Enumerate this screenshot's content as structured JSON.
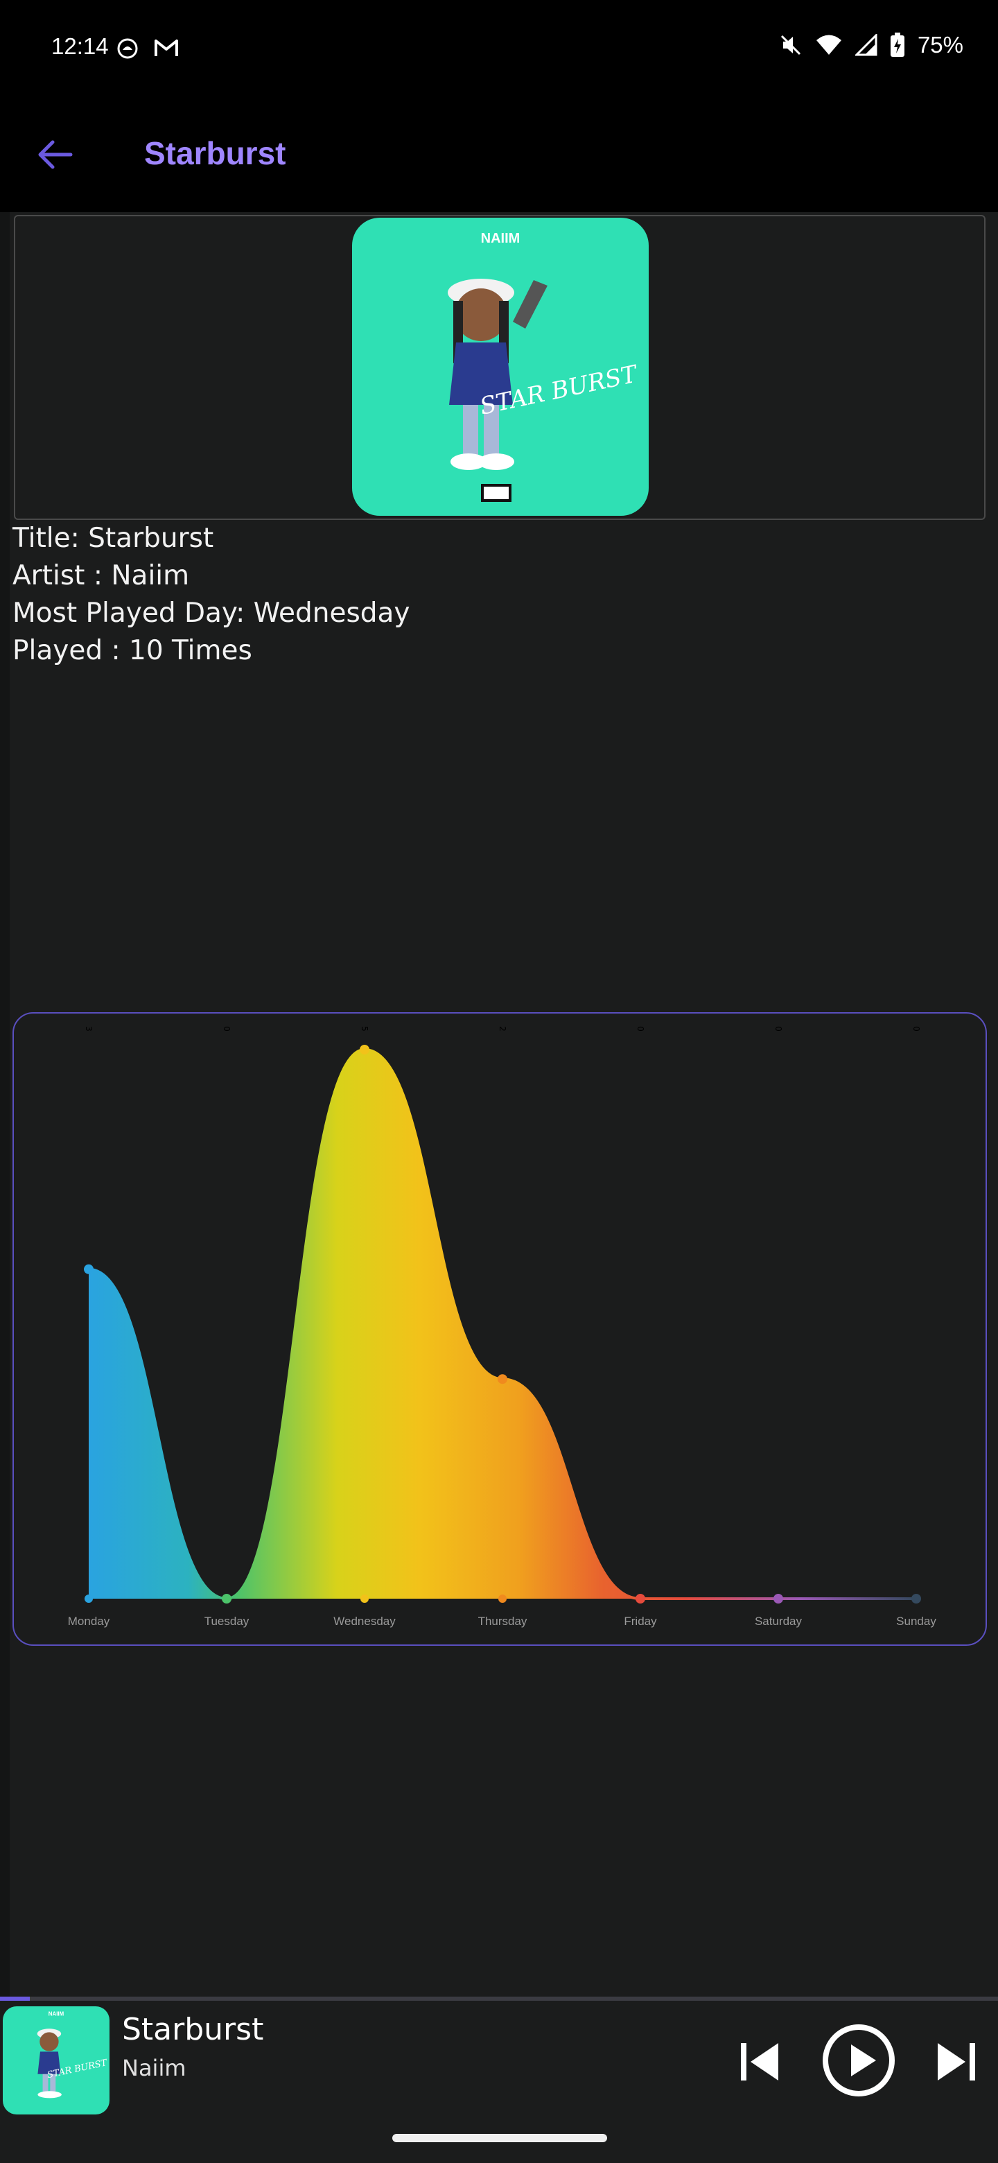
{
  "status_bar": {
    "time": "12:14",
    "battery": "75%",
    "icons": [
      "recorder-icon",
      "gmail-icon",
      "mute-icon",
      "wifi-icon",
      "signal-icon",
      "battery-icon"
    ]
  },
  "app_bar": {
    "title": "Starburst",
    "back_icon": "arrow-left-icon",
    "accent": "#9f86ff"
  },
  "song_info": {
    "title_line": "Title: Starburst",
    "artist_line": "Artist : Naiim",
    "most_played_line": "Most Played Day: Wednesday",
    "played_line": "Played : 10 Times"
  },
  "album_art": {
    "artist_text": "NAIIM",
    "cover_text": "STAR BURST",
    "color": "#2fe0b4"
  },
  "chart_data": {
    "type": "area",
    "categories": [
      "Monday",
      "Tuesday",
      "Wednesday",
      "Thursday",
      "Friday",
      "Saturday",
      "Sunday"
    ],
    "values": [
      3,
      0,
      5,
      2,
      0,
      0,
      0
    ],
    "top_labels": [
      "3",
      "0",
      "5",
      "2",
      "0",
      "0",
      "0"
    ],
    "ylim": [
      0,
      5
    ],
    "grid": false,
    "point_colors": [
      "#2aa3e0",
      "#4cc36a",
      "#f2c21a",
      "#f08a1e",
      "#e64b3c",
      "#9b59b6",
      "#34495e"
    ]
  },
  "player": {
    "title": "Starburst",
    "artist": "Naiim",
    "progress": 0.03,
    "controls": [
      "skip-previous-icon",
      "play-icon",
      "skip-next-icon"
    ]
  }
}
